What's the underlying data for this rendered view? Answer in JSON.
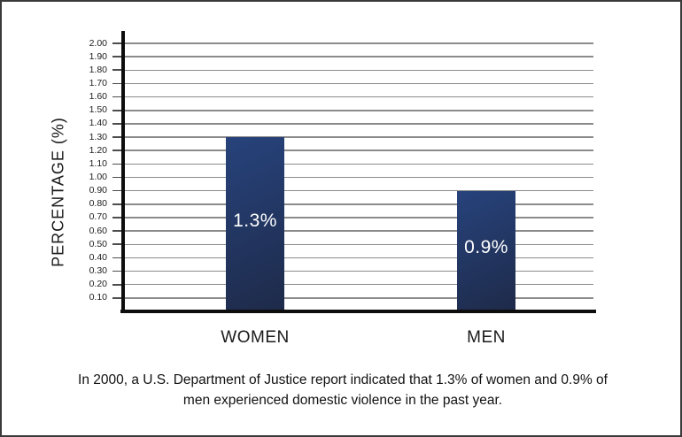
{
  "chart_data": {
    "type": "bar",
    "categories": [
      "WOMEN",
      "MEN"
    ],
    "values": [
      1.3,
      0.9
    ],
    "bar_labels": [
      "1.3%",
      "0.9%"
    ],
    "title": "",
    "xlabel": "",
    "ylabel": "PERCENTAGE (%)",
    "ylim": [
      0,
      2.0
    ],
    "ytick_step": 0.1,
    "yticks": [
      "2.00",
      "1.90",
      "1.80",
      "1.70",
      "1.60",
      "1.50",
      "1.40",
      "1.30",
      "1.20",
      "1.10",
      "1.00",
      "0.90",
      "0.80",
      "0.70",
      "0.60",
      "0.50",
      "0.40",
      "0.30",
      "0.20",
      "0.10"
    ],
    "grid": true,
    "legend": null
  },
  "caption": "In 2000, a U.S. Department of Justice report indicated that 1.3% of women and 0.9% of men experienced domestic violence in the past year.",
  "colors": {
    "bar_gradient_top": "#27437c",
    "bar_gradient_bottom": "#1e2a49",
    "gridline": "#8b8b8b",
    "axis": "#0d0d0d",
    "bar_value_text": "#ffffff",
    "frame_border": "#3a3a3a"
  }
}
